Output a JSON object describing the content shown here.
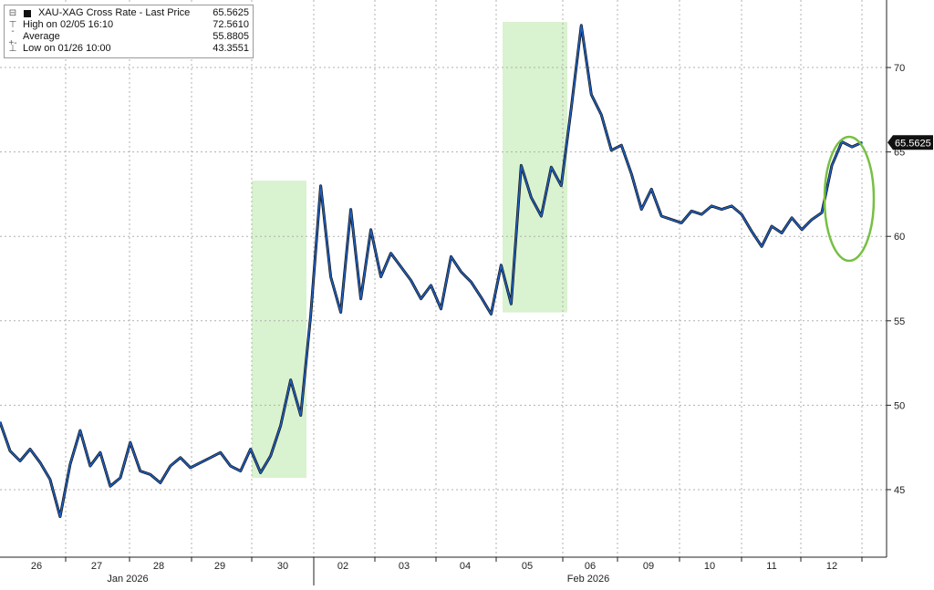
{
  "legend": {
    "title": "XAU-XAG Cross Rate - Last Price",
    "title_value": "65.5625",
    "high_label": "High on 02/05 16:10",
    "high_value": "72.5610",
    "avg_label": "Average",
    "avg_value": "55.8805",
    "low_label": "Low on 01/26 10:00",
    "low_value": "43.3551"
  },
  "colors": {
    "line": "#1f5fbf",
    "line_shadow": "#111111",
    "highlight": "#d9f2cf",
    "ellipse": "#76c043",
    "last_box": "#111111",
    "grid": "#b0b0b0"
  },
  "chart_data": {
    "type": "line",
    "title": "XAU-XAG Cross Rate",
    "xlabel": "",
    "ylabel": "",
    "ylim": [
      41,
      74
    ],
    "yticks": [
      45,
      50,
      55,
      60,
      65,
      70
    ],
    "last_value_label": "65.5625",
    "grid": true,
    "legend_position": "top-left",
    "x_tick_labels": [
      "26",
      "27",
      "28",
      "29",
      "30",
      "02",
      "03",
      "04",
      "05",
      "06",
      "09",
      "10",
      "11",
      "12"
    ],
    "month_labels": [
      "Jan 2026",
      "Feb 2026"
    ],
    "series": [
      {
        "values": [
          49.0,
          47.3,
          46.7,
          47.4,
          46.6,
          45.6,
          43.4,
          46.5,
          48.5,
          46.4,
          47.2,
          45.2,
          45.7,
          47.8,
          46.1,
          45.9,
          45.4,
          46.4,
          46.9,
          46.3,
          46.6,
          46.9,
          47.2,
          46.4,
          46.1,
          47.4,
          46.0,
          47.0,
          48.8,
          51.5,
          49.4,
          55.3,
          63.0,
          57.6,
          55.5,
          61.6,
          56.3,
          60.4,
          57.6,
          59.0,
          58.2,
          57.4,
          56.3,
          57.1,
          55.7,
          58.8,
          57.9,
          57.3,
          56.4,
          55.4,
          58.3,
          56.0,
          64.2,
          62.3,
          61.2,
          64.1,
          63.0,
          67.6,
          72.5,
          68.4,
          67.2,
          65.1,
          65.4,
          63.7,
          61.6,
          62.8,
          61.2,
          61.0,
          60.8,
          61.5,
          61.3,
          61.8,
          61.6,
          61.8,
          61.3,
          60.3,
          59.4,
          60.6,
          60.2,
          61.1,
          60.4,
          61.0,
          61.4,
          64.2,
          65.6,
          65.3,
          65.56
        ]
      }
    ],
    "highlights": [
      {
        "y_range": [
          45.7,
          63.3
        ]
      },
      {
        "y_range": [
          55.5,
          72.7
        ]
      }
    ]
  }
}
